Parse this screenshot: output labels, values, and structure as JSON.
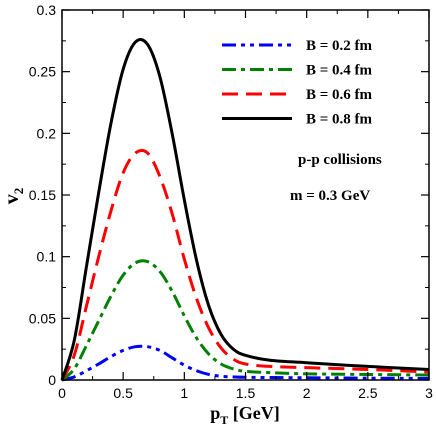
{
  "chart_data": {
    "type": "line",
    "xlabel": {
      "main": "p",
      "sub": "T",
      "rest": " [GeV]"
    },
    "ylabel": {
      "main": "v",
      "sub": "2"
    },
    "xlim": [
      0,
      3
    ],
    "ylim": [
      0,
      0.3
    ],
    "xticks": [
      "0",
      "0.5",
      "1",
      "1.5",
      "2",
      "2.5",
      "3"
    ],
    "yticks": [
      "0",
      "0.05",
      "0.1",
      "0.15",
      "0.2",
      "0.25",
      "0.3"
    ],
    "grid": false,
    "legend_position": "top-right",
    "annotations": [
      "p-p collisions",
      "m = 0.3 GeV"
    ],
    "series": [
      {
        "name": "B = 0.2 fm",
        "color": "#0000ff",
        "dash": "dash-dot-dot",
        "x": [
          0,
          0.1,
          0.2,
          0.3,
          0.4,
          0.5,
          0.6,
          0.7,
          0.8,
          0.9,
          1.0,
          1.1,
          1.2,
          1.3,
          1.4,
          1.5,
          1.7,
          2.0,
          2.5,
          3.0
        ],
        "y": [
          0,
          0.0025,
          0.0075,
          0.013,
          0.019,
          0.024,
          0.027,
          0.027,
          0.024,
          0.018,
          0.012,
          0.0075,
          0.0045,
          0.003,
          0.0025,
          0.0022,
          0.002,
          0.0018,
          0.0015,
          0.0012
        ]
      },
      {
        "name": "B = 0.4 fm",
        "color": "#008000",
        "dash": "dash-dot",
        "x": [
          0,
          0.1,
          0.2,
          0.3,
          0.4,
          0.5,
          0.6,
          0.7,
          0.8,
          0.9,
          1.0,
          1.1,
          1.2,
          1.3,
          1.4,
          1.5,
          1.7,
          2.0,
          2.5,
          3.0
        ],
        "y": [
          0,
          0.009,
          0.028,
          0.048,
          0.068,
          0.085,
          0.095,
          0.096,
          0.088,
          0.072,
          0.052,
          0.034,
          0.021,
          0.013,
          0.009,
          0.007,
          0.006,
          0.005,
          0.0045,
          0.004
        ]
      },
      {
        "name": "B = 0.6 fm",
        "color": "#ff0000",
        "dash": "dash",
        "x": [
          0,
          0.1,
          0.2,
          0.3,
          0.4,
          0.5,
          0.6,
          0.7,
          0.8,
          0.9,
          1.0,
          1.1,
          1.2,
          1.3,
          1.4,
          1.5,
          1.7,
          2.0,
          2.5,
          3.0
        ],
        "y": [
          0,
          0.02,
          0.06,
          0.1,
          0.137,
          0.168,
          0.184,
          0.184,
          0.165,
          0.135,
          0.098,
          0.066,
          0.042,
          0.026,
          0.017,
          0.013,
          0.011,
          0.01,
          0.0085,
          0.0065
        ]
      },
      {
        "name": "B = 0.8 fm",
        "color": "#000000",
        "dash": "solid",
        "x": [
          0,
          0.1,
          0.2,
          0.3,
          0.4,
          0.5,
          0.6,
          0.7,
          0.8,
          0.9,
          1.0,
          1.1,
          1.2,
          1.3,
          1.4,
          1.5,
          1.7,
          2.0,
          2.5,
          3.0
        ],
        "y": [
          0,
          0.032,
          0.092,
          0.152,
          0.208,
          0.252,
          0.274,
          0.272,
          0.246,
          0.2,
          0.146,
          0.097,
          0.06,
          0.037,
          0.025,
          0.02,
          0.016,
          0.014,
          0.011,
          0.0085
        ]
      }
    ]
  }
}
